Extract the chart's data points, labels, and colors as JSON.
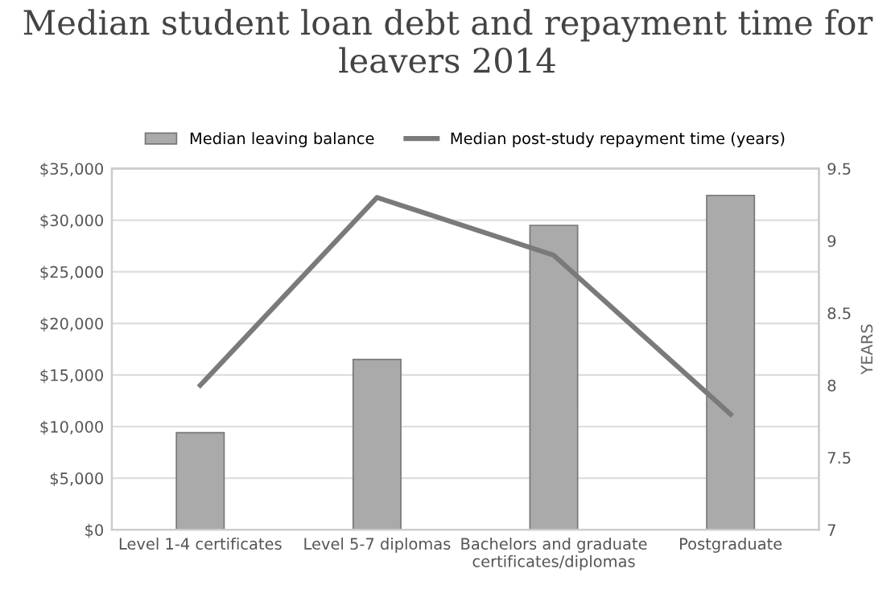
{
  "chart_data": {
    "type": "bar",
    "title": "Median student loan debt and repayment time for leavers 2014",
    "y2label": "YEARS",
    "categories": [
      "Level 1-4 certificates",
      "Level 5-7 diplomas",
      "Bachelors and graduate\ncertificates/diplomas",
      "Postgraduate"
    ],
    "series": [
      {
        "name": "Median leaving balance",
        "color": "#aaaaaa",
        "values": [
          9400,
          16500,
          29500,
          32400
        ]
      },
      {
        "name": "Median post-study repayment time (years)",
        "color": "#7a7a7a",
        "type": "line",
        "axis": "y2",
        "values": [
          8.0,
          9.3,
          8.9,
          7.8
        ]
      }
    ],
    "ylim": [
      0,
      35000
    ],
    "yticks": [
      {
        "value": 0,
        "label": "$0"
      },
      {
        "value": 5000,
        "label": "$5,000"
      },
      {
        "value": 10000,
        "label": "$10,000"
      },
      {
        "value": 15000,
        "label": "$15,000"
      },
      {
        "value": 20000,
        "label": "$20,000"
      },
      {
        "value": 25000,
        "label": "$25,000"
      },
      {
        "value": 30000,
        "label": "$30,000"
      },
      {
        "value": 35000,
        "label": "$35,000"
      }
    ],
    "y2lim": [
      7,
      9.5
    ],
    "y2ticks": [
      7,
      7.5,
      8,
      8.5,
      9,
      9.5
    ],
    "grid": "y",
    "legend": "top",
    "marker": "none"
  }
}
